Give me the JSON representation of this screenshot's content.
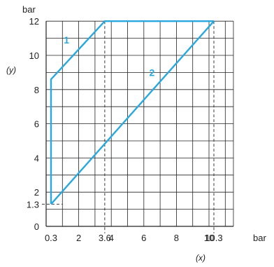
{
  "chart_data": {
    "type": "line",
    "x_unit": "bar",
    "y_unit": "bar",
    "xlabel": "(x)",
    "ylabel": "(y)",
    "xlim": [
      0,
      11.5
    ],
    "ylim": [
      0,
      12
    ],
    "x_grid_step": 1,
    "y_grid_step": 1,
    "grid": true,
    "x_ticks": [
      {
        "value": 0.3,
        "label": "0.3"
      },
      {
        "value": 2,
        "label": "2"
      },
      {
        "value": 3.6,
        "label": "3.6"
      },
      {
        "value": 4,
        "label": "4"
      },
      {
        "value": 6,
        "label": "6"
      },
      {
        "value": 8,
        "label": "8"
      },
      {
        "value": 10,
        "label": "10"
      },
      {
        "value": 10.3,
        "label": "10.3"
      }
    ],
    "y_ticks": [
      {
        "value": 0,
        "label": "0"
      },
      {
        "value": 1.3,
        "label": "1.3"
      },
      {
        "value": 2,
        "label": "2"
      },
      {
        "value": 4,
        "label": "4"
      },
      {
        "value": 6,
        "label": "6"
      },
      {
        "value": 8,
        "label": "8"
      },
      {
        "value": 10,
        "label": "10"
      },
      {
        "value": 12,
        "label": "12"
      }
    ],
    "reference_x": [
      3.6,
      10.3
    ],
    "reference_y": [
      1.3
    ],
    "series_color": "#29a8e0",
    "series": [
      {
        "label": "1",
        "label_at": {
          "x": 1.25,
          "y": 10.7
        },
        "points": [
          {
            "x": 0.3,
            "y": 1.3
          },
          {
            "x": 0.3,
            "y": 8.6
          },
          {
            "x": 3.6,
            "y": 12
          },
          {
            "x": 10.3,
            "y": 12
          }
        ]
      },
      {
        "label": "2",
        "label_at": {
          "x": 6.5,
          "y": 8.8
        },
        "points": [
          {
            "x": 0.3,
            "y": 1.3
          },
          {
            "x": 10.3,
            "y": 12
          }
        ]
      }
    ]
  }
}
